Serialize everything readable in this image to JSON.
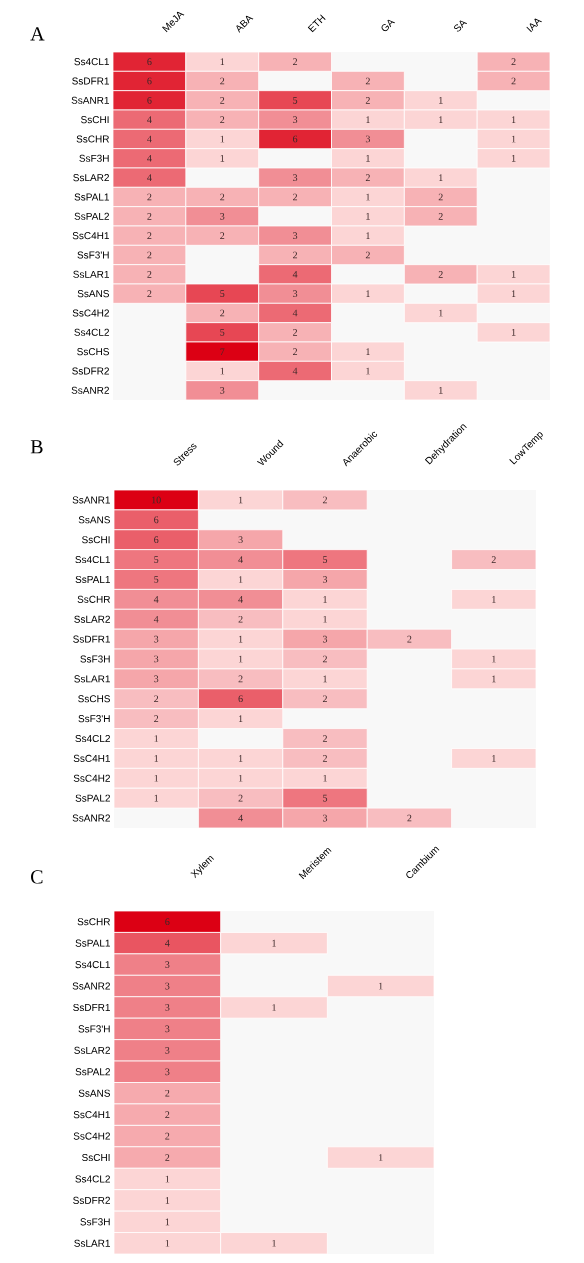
{
  "chart_data": [
    {
      "type": "heatmap",
      "title": "A",
      "data_labels": true,
      "categories": [
        "MeJA",
        "ABA",
        "ETH",
        "GA",
        "SA",
        "IAA"
      ],
      "y_categories": [
        "Ss4CL1",
        "SsDFR1",
        "SsANR1",
        "SsCHI",
        "SsCHR",
        "SsF3H",
        "SsLAR2",
        "SsPAL1",
        "SsPAL2",
        "SsC4H1",
        "SsF3'H",
        "SsLAR1",
        "SsANS",
        "SsC4H2",
        "Ss4CL2",
        "SsCHS",
        "SsDFR2",
        "SsANR2"
      ],
      "cells": [
        [
          6,
          1,
          2,
          null,
          null,
          2
        ],
        [
          6,
          2,
          null,
          2,
          null,
          2
        ],
        [
          6,
          2,
          5,
          2,
          1,
          null
        ],
        [
          4,
          2,
          3,
          1,
          1,
          1
        ],
        [
          4,
          1,
          6,
          3,
          null,
          1
        ],
        [
          4,
          1,
          null,
          1,
          null,
          1
        ],
        [
          4,
          null,
          3,
          2,
          1,
          null
        ],
        [
          2,
          2,
          2,
          1,
          2,
          null
        ],
        [
          2,
          3,
          null,
          1,
          2,
          null
        ],
        [
          2,
          2,
          3,
          1,
          null,
          null
        ],
        [
          2,
          null,
          2,
          2,
          null,
          null
        ],
        [
          2,
          null,
          4,
          null,
          2,
          1
        ],
        [
          2,
          5,
          3,
          1,
          null,
          1
        ],
        [
          null,
          2,
          4,
          null,
          1,
          null
        ],
        [
          null,
          5,
          2,
          null,
          null,
          1
        ],
        [
          null,
          7,
          2,
          1,
          null,
          null
        ],
        [
          null,
          1,
          4,
          1,
          null,
          null
        ],
        [
          null,
          3,
          null,
          null,
          1,
          null
        ]
      ]
    },
    {
      "type": "heatmap",
      "title": "B",
      "data_labels": true,
      "categories": [
        "Stress",
        "Wound",
        "Anaerobic",
        "Dehydration",
        "LowTemp"
      ],
      "y_categories": [
        "SsANR1",
        "SsANS",
        "SsCHI",
        "Ss4CL1",
        "SsPAL1",
        "SsCHR",
        "SsLAR2",
        "SsDFR1",
        "SsF3H",
        "SsLAR1",
        "SsCHS",
        "SsF3'H",
        "Ss4CL2",
        "SsC4H1",
        "SsC4H2",
        "SsPAL2",
        "SsANR2"
      ],
      "cells": [
        [
          10,
          1,
          2,
          null,
          null
        ],
        [
          6,
          null,
          null,
          null,
          null
        ],
        [
          6,
          3,
          null,
          null,
          null
        ],
        [
          5,
          4,
          5,
          null,
          2
        ],
        [
          5,
          1,
          3,
          null,
          null
        ],
        [
          4,
          4,
          1,
          null,
          1
        ],
        [
          4,
          2,
          1,
          null,
          null
        ],
        [
          3,
          1,
          3,
          2,
          null
        ],
        [
          3,
          1,
          2,
          null,
          1
        ],
        [
          3,
          2,
          1,
          null,
          1
        ],
        [
          2,
          6,
          2,
          null,
          null
        ],
        [
          2,
          1,
          null,
          null,
          null
        ],
        [
          1,
          null,
          2,
          null,
          null
        ],
        [
          1,
          1,
          2,
          null,
          1
        ],
        [
          1,
          1,
          1,
          null,
          null
        ],
        [
          1,
          2,
          5,
          null,
          null
        ],
        [
          null,
          4,
          3,
          2,
          null
        ]
      ]
    },
    {
      "type": "heatmap",
      "title": "C",
      "data_labels": true,
      "categories": [
        "Xylem",
        "Meristem",
        "Cambium"
      ],
      "y_categories": [
        "SsCHR",
        "SsPAL1",
        "Ss4CL1",
        "SsANR2",
        "SsDFR1",
        "SsF3'H",
        "SsLAR2",
        "SsPAL2",
        "SsANS",
        "SsC4H1",
        "SsC4H2",
        "SsCHI",
        "Ss4CL2",
        "SsDFR2",
        "SsF3H",
        "SsLAR1"
      ],
      "cells": [
        [
          6,
          null,
          null
        ],
        [
          4,
          1,
          null
        ],
        [
          3,
          null,
          null
        ],
        [
          3,
          null,
          1
        ],
        [
          3,
          1,
          null
        ],
        [
          3,
          null,
          null
        ],
        [
          3,
          null,
          null
        ],
        [
          3,
          null,
          null
        ],
        [
          2,
          null,
          null
        ],
        [
          2,
          null,
          null
        ],
        [
          2,
          null,
          null
        ],
        [
          2,
          null,
          1
        ],
        [
          1,
          null,
          null
        ],
        [
          1,
          null,
          null
        ],
        [
          1,
          null,
          null
        ],
        [
          1,
          1,
          null
        ]
      ]
    }
  ]
}
